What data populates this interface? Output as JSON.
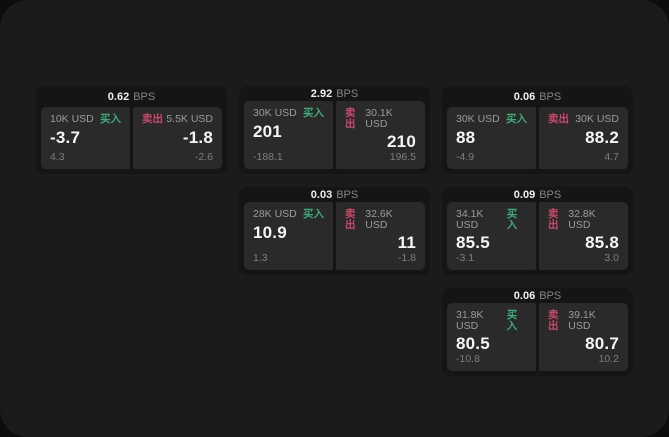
{
  "labels": {
    "bps_unit": "BPS",
    "buy": "买入",
    "sell": "卖出"
  },
  "colors": {
    "buy_accent": "#3dab77",
    "sell_accent": "#c9486a",
    "panel_bg": "#1b1b1c",
    "card_bg": "#151516",
    "tile_bg": "#2a2a2b"
  },
  "cards": [
    {
      "row": 1,
      "col": 1,
      "bps": "0.62",
      "buy": {
        "size": "10K USD",
        "price": "-3.7",
        "delta": "4.3"
      },
      "sell": {
        "size": "5.5K USD",
        "price": "-1.8",
        "delta": "-2.6"
      }
    },
    {
      "row": 1,
      "col": 2,
      "bps": "2.92",
      "buy": {
        "size": "30K USD",
        "price": "201",
        "delta": "-188.1"
      },
      "sell": {
        "size": "30.1K USD",
        "price": "210",
        "delta": "196.5"
      }
    },
    {
      "row": 1,
      "col": 3,
      "bps": "0.06",
      "buy": {
        "size": "30K USD",
        "price": "88",
        "delta": "-4.9"
      },
      "sell": {
        "size": "30K USD",
        "price": "88.2",
        "delta": "4.7"
      }
    },
    {
      "row": 2,
      "col": 2,
      "bps": "0.03",
      "buy": {
        "size": "28K USD",
        "price": "10.9",
        "delta": "1.3"
      },
      "sell": {
        "size": "32.6K USD",
        "price": "11",
        "delta": "-1.8"
      }
    },
    {
      "row": 2,
      "col": 3,
      "bps": "0.09",
      "buy": {
        "size": "34.1K USD",
        "price": "85.5",
        "delta": "-3.1"
      },
      "sell": {
        "size": "32.8K USD",
        "price": "85.8",
        "delta": "3.0"
      }
    },
    {
      "row": 3,
      "col": 3,
      "bps": "0.06",
      "buy": {
        "size": "31.8K USD",
        "price": "80.5",
        "delta": "-10.8"
      },
      "sell": {
        "size": "39.1K USD",
        "price": "80.7",
        "delta": "10.2"
      }
    }
  ]
}
